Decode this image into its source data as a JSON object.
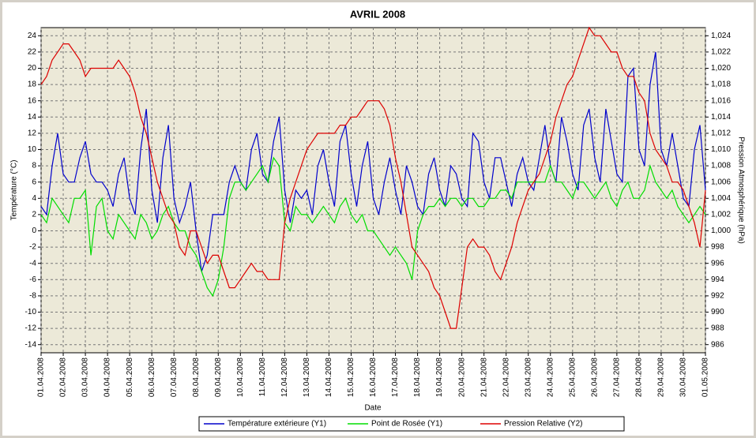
{
  "chart_data": {
    "type": "line",
    "title": "AVRIL  2008",
    "xlabel": "Date",
    "ylabel": "Température (°C)",
    "y2label": "Pression Atmosphérique (hPa)",
    "x": [
      0,
      0.25,
      0.5,
      0.75,
      1,
      1.25,
      1.5,
      1.75,
      2,
      2.25,
      2.5,
      2.75,
      3,
      3.25,
      3.5,
      3.75,
      4,
      4.25,
      4.5,
      4.75,
      5,
      5.25,
      5.5,
      5.75,
      6,
      6.25,
      6.5,
      6.75,
      7,
      7.25,
      7.5,
      7.75,
      8,
      8.25,
      8.5,
      8.75,
      9,
      9.25,
      9.5,
      9.75,
      10,
      10.25,
      10.5,
      10.75,
      11,
      11.25,
      11.5,
      11.75,
      12,
      12.25,
      12.5,
      12.75,
      13,
      13.25,
      13.5,
      13.75,
      14,
      14.25,
      14.5,
      14.75,
      15,
      15.25,
      15.5,
      15.75,
      16,
      16.25,
      16.5,
      16.75,
      17,
      17.25,
      17.5,
      17.75,
      18,
      18.25,
      18.5,
      18.75,
      19,
      19.25,
      19.5,
      19.75,
      20,
      20.25,
      20.5,
      20.75,
      21,
      21.25,
      21.5,
      21.75,
      22,
      22.25,
      22.5,
      22.75,
      23,
      23.25,
      23.5,
      23.75,
      24,
      24.25,
      24.5,
      24.75,
      25,
      25.25,
      25.5,
      25.75,
      26,
      26.25,
      26.5,
      26.75,
      27,
      27.25,
      27.5,
      27.75,
      28,
      28.25,
      28.5,
      28.75,
      29,
      29.25,
      29.5,
      29.75,
      30
    ],
    "series": [
      {
        "name": "Température extérieure (Y1)",
        "color": "#0000cc",
        "values": [
          3,
          2,
          8,
          12,
          7,
          6,
          6,
          9,
          11,
          7,
          6,
          6,
          5,
          3,
          7,
          9,
          4,
          2,
          10,
          15,
          5,
          1,
          9,
          13,
          4,
          1,
          3,
          6,
          0,
          -5,
          -3,
          2,
          2,
          2,
          6,
          8,
          6,
          5,
          10,
          12,
          7,
          6,
          11,
          14,
          5,
          1,
          5,
          4,
          5,
          2,
          8,
          10,
          6,
          3,
          11,
          13,
          7,
          3,
          8,
          11,
          4,
          2,
          6,
          9,
          5,
          2,
          8,
          6,
          3,
          2,
          7,
          9,
          5,
          3,
          8,
          7,
          4,
          3,
          12,
          11,
          6,
          4,
          9,
          9,
          6,
          3,
          7,
          9,
          6,
          5,
          9,
          13,
          8,
          6,
          14,
          11,
          7,
          5,
          13,
          15,
          9,
          6,
          15,
          11,
          7,
          6,
          19,
          20,
          10,
          8,
          18,
          22,
          10,
          8,
          12,
          8,
          4,
          3,
          10,
          13,
          5
        ]
      },
      {
        "name": "Point de Rosée (Y1)",
        "color": "#00dd00",
        "values": [
          2,
          1,
          4,
          3,
          2,
          1,
          4,
          4,
          5,
          -3,
          3,
          4,
          0,
          -1,
          2,
          1,
          0,
          -1,
          2,
          1,
          -1,
          0,
          2,
          3,
          1,
          0,
          0,
          -2,
          -3,
          -5,
          -7,
          -8,
          -6,
          -2,
          4,
          6,
          6,
          5,
          6,
          7,
          8,
          6,
          9,
          8,
          1,
          0,
          3,
          2,
          2,
          1,
          2,
          3,
          2,
          1,
          3,
          4,
          2,
          1,
          2,
          0,
          0,
          -1,
          -2,
          -3,
          -2,
          -3,
          -4,
          -6,
          0,
          2,
          3,
          3,
          4,
          3,
          4,
          4,
          3,
          4,
          4,
          3,
          3,
          4,
          4,
          5,
          5,
          4,
          6,
          6,
          6,
          6,
          6,
          6,
          8,
          6,
          6,
          5,
          4,
          6,
          6,
          5,
          4,
          5,
          6,
          4,
          3,
          5,
          6,
          4,
          4,
          5,
          8,
          6,
          5,
          4,
          5,
          3,
          2,
          1,
          2,
          3,
          2
        ]
      },
      {
        "name": "Pression Relative (Y2)",
        "color": "#dd0000",
        "axis": "y2",
        "values": [
          1018,
          1019,
          1021,
          1022,
          1023,
          1023,
          1022,
          1021,
          1019,
          1020,
          1020,
          1020,
          1020,
          1020,
          1021,
          1020,
          1019,
          1017,
          1014,
          1012,
          1009,
          1006,
          1004,
          1002,
          1001,
          998,
          997,
          1000,
          1000,
          998,
          996,
          997,
          997,
          995,
          993,
          993,
          994,
          995,
          996,
          995,
          995,
          994,
          994,
          994,
          1001,
          1004,
          1006,
          1008,
          1010,
          1011,
          1012,
          1012,
          1012,
          1012,
          1013,
          1013,
          1014,
          1014,
          1015,
          1016,
          1016,
          1016,
          1015,
          1013,
          1009,
          1006,
          1002,
          998,
          997,
          996,
          995,
          993,
          992,
          990,
          988,
          988,
          993,
          998,
          999,
          998,
          998,
          997,
          995,
          994,
          996,
          998,
          1001,
          1003,
          1005,
          1006,
          1007,
          1009,
          1011,
          1014,
          1016,
          1018,
          1019,
          1021,
          1023,
          1025,
          1024,
          1024,
          1023,
          1022,
          1022,
          1020,
          1019,
          1019,
          1017,
          1016,
          1012,
          1010,
          1009,
          1008,
          1006,
          1006,
          1005,
          1003,
          1001,
          998,
          1005
        ]
      }
    ],
    "xlim": [
      0,
      30
    ],
    "xticks": [
      {
        "value": 0,
        "label": "01.04.2008"
      },
      {
        "value": 1,
        "label": "02.04.2008"
      },
      {
        "value": 2,
        "label": "03.04.2008"
      },
      {
        "value": 3,
        "label": "04.04.2008"
      },
      {
        "value": 4,
        "label": "05.04.2008"
      },
      {
        "value": 5,
        "label": "06.04.2008"
      },
      {
        "value": 6,
        "label": "07.04.2008"
      },
      {
        "value": 7,
        "label": "08.04.2008"
      },
      {
        "value": 8,
        "label": "09.04.2008"
      },
      {
        "value": 9,
        "label": "10.04.2008"
      },
      {
        "value": 10,
        "label": "11.04.2008"
      },
      {
        "value": 11,
        "label": "12.04.2008"
      },
      {
        "value": 12,
        "label": "13.04.2008"
      },
      {
        "value": 13,
        "label": "14.04.2008"
      },
      {
        "value": 14,
        "label": "15.04.2008"
      },
      {
        "value": 15,
        "label": "16.04.2008"
      },
      {
        "value": 16,
        "label": "17.04.2008"
      },
      {
        "value": 17,
        "label": "18.04.2008"
      },
      {
        "value": 18,
        "label": "19.04.2008"
      },
      {
        "value": 19,
        "label": "20.04.2008"
      },
      {
        "value": 20,
        "label": "21.04.2008"
      },
      {
        "value": 21,
        "label": "22.04.2008"
      },
      {
        "value": 22,
        "label": "23.04.2008"
      },
      {
        "value": 23,
        "label": "24.04.2008"
      },
      {
        "value": 24,
        "label": "25.04.2008"
      },
      {
        "value": 25,
        "label": "26.04.2008"
      },
      {
        "value": 26,
        "label": "27.04.2008"
      },
      {
        "value": 27,
        "label": "28.04.2008"
      },
      {
        "value": 28,
        "label": "29.04.2008"
      },
      {
        "value": 29,
        "label": "30.04.2008"
      },
      {
        "value": 30,
        "label": "01.05.2008"
      }
    ],
    "ylim": [
      -15,
      25
    ],
    "yticks": [
      -14,
      -12,
      -10,
      -8,
      -6,
      -4,
      -2,
      0,
      2,
      4,
      6,
      8,
      10,
      12,
      14,
      16,
      18,
      20,
      22,
      24
    ],
    "y2lim": [
      985,
      1025
    ],
    "y2ticks": [
      986,
      988,
      990,
      992,
      994,
      996,
      998,
      {
        "value": 1000,
        "label": "1,000"
      },
      {
        "value": 1002,
        "label": "1,002"
      },
      {
        "value": 1004,
        "label": "1,004"
      },
      {
        "value": 1006,
        "label": "1,006"
      },
      {
        "value": 1008,
        "label": "1,008"
      },
      {
        "value": 1010,
        "label": "1,010"
      },
      {
        "value": 1012,
        "label": "1,012"
      },
      {
        "value": 1014,
        "label": "1,014"
      },
      {
        "value": 1016,
        "label": "1,016"
      },
      {
        "value": 1018,
        "label": "1,018"
      },
      {
        "value": 1020,
        "label": "1,020"
      },
      {
        "value": 1022,
        "label": "1,022"
      },
      {
        "value": 1024,
        "label": "1,024"
      }
    ],
    "grid": true,
    "legend": "bottom"
  }
}
